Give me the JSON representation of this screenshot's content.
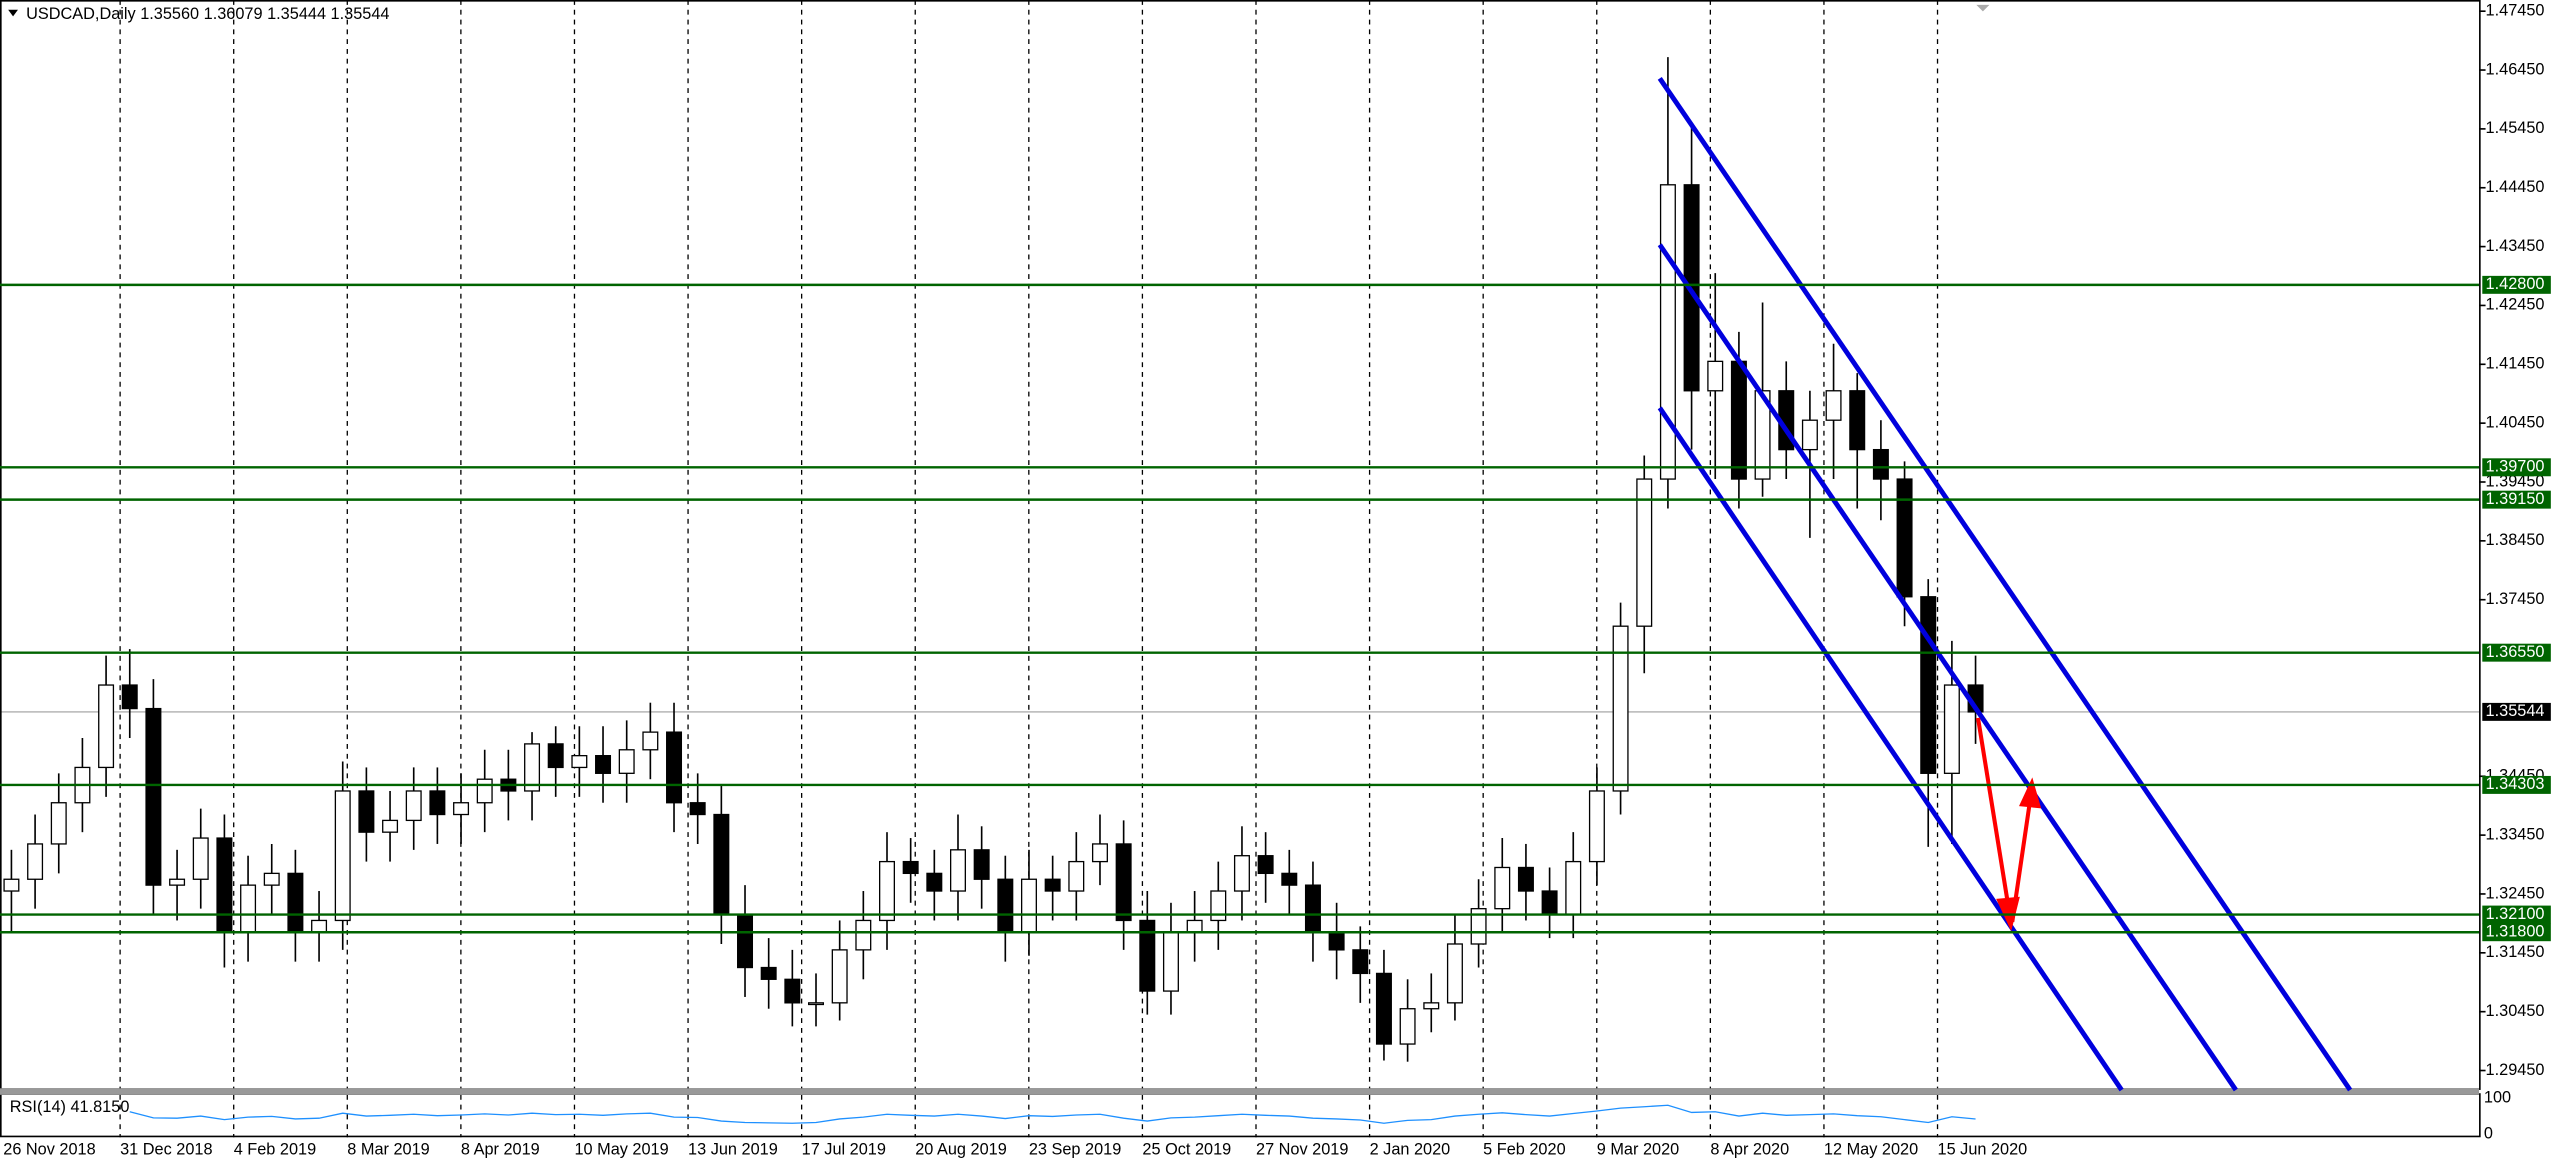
{
  "chart_data": {
    "type": "candlestick",
    "title": "USDCAD,Daily  1.35560 1.36079 1.35444 1.35544",
    "indicator_title": "RSI(14) 41.8150",
    "x_labels": [
      "26 Nov 2018",
      "31 Dec 2018",
      "4 Feb 2019",
      "8 Mar 2019",
      "8 Apr 2019",
      "10 May 2019",
      "13 Jun 2019",
      "17 Jul 2019",
      "20 Aug 2019",
      "23 Sep 2019",
      "25 Oct 2019",
      "27 Nov 2019",
      "2 Jan 2020",
      "5 Feb 2020",
      "9 Mar 2020",
      "8 Apr 2020",
      "12 May 2020",
      "15 Jun 2020"
    ],
    "candles": [
      [
        1.325,
        1.332,
        1.318,
        1.327
      ],
      [
        1.327,
        1.338,
        1.322,
        1.333
      ],
      [
        1.333,
        1.345,
        1.328,
        1.34
      ],
      [
        1.34,
        1.351,
        1.335,
        1.346
      ],
      [
        1.346,
        1.365,
        1.341,
        1.36
      ],
      [
        1.36,
        1.3661,
        1.351,
        1.356
      ],
      [
        1.356,
        1.361,
        1.321,
        1.326
      ],
      [
        1.326,
        1.332,
        1.32,
        1.327
      ],
      [
        1.327,
        1.339,
        1.322,
        1.334
      ],
      [
        1.334,
        1.338,
        1.312,
        1.318
      ],
      [
        1.318,
        1.331,
        1.313,
        1.326
      ],
      [
        1.326,
        1.333,
        1.321,
        1.328
      ],
      [
        1.328,
        1.332,
        1.313,
        1.318
      ],
      [
        1.318,
        1.325,
        1.313,
        1.32
      ],
      [
        1.32,
        1.347,
        1.315,
        1.342
      ],
      [
        1.342,
        1.346,
        1.33,
        1.335
      ],
      [
        1.335,
        1.342,
        1.33,
        1.337
      ],
      [
        1.337,
        1.346,
        1.332,
        1.342
      ],
      [
        1.342,
        1.346,
        1.333,
        1.338
      ],
      [
        1.338,
        1.345,
        1.333,
        1.34
      ],
      [
        1.34,
        1.349,
        1.335,
        1.344
      ],
      [
        1.344,
        1.349,
        1.337,
        1.342
      ],
      [
        1.342,
        1.352,
        1.337,
        1.35
      ],
      [
        1.35,
        1.353,
        1.341,
        1.346
      ],
      [
        1.346,
        1.353,
        1.341,
        1.348
      ],
      [
        1.348,
        1.353,
        1.34,
        1.345
      ],
      [
        1.345,
        1.354,
        1.34,
        1.349
      ],
      [
        1.349,
        1.357,
        1.344,
        1.352
      ],
      [
        1.352,
        1.357,
        1.335,
        1.34
      ],
      [
        1.34,
        1.345,
        1.333,
        1.338
      ],
      [
        1.338,
        1.343,
        1.316,
        1.321
      ],
      [
        1.321,
        1.326,
        1.307,
        1.312
      ],
      [
        1.312,
        1.317,
        1.305,
        1.31
      ],
      [
        1.31,
        1.315,
        1.302,
        1.306
      ],
      [
        1.306,
        1.311,
        1.302,
        1.306
      ],
      [
        1.306,
        1.32,
        1.303,
        1.315
      ],
      [
        1.315,
        1.325,
        1.31,
        1.32
      ],
      [
        1.32,
        1.335,
        1.315,
        1.33
      ],
      [
        1.33,
        1.334,
        1.323,
        1.328
      ],
      [
        1.328,
        1.332,
        1.32,
        1.325
      ],
      [
        1.325,
        1.338,
        1.32,
        1.332
      ],
      [
        1.332,
        1.336,
        1.322,
        1.327
      ],
      [
        1.327,
        1.331,
        1.313,
        1.318
      ],
      [
        1.318,
        1.332,
        1.314,
        1.327
      ],
      [
        1.327,
        1.331,
        1.32,
        1.325
      ],
      [
        1.325,
        1.335,
        1.32,
        1.33
      ],
      [
        1.33,
        1.338,
        1.326,
        1.333
      ],
      [
        1.333,
        1.337,
        1.315,
        1.32
      ],
      [
        1.32,
        1.325,
        1.304,
        1.308
      ],
      [
        1.308,
        1.323,
        1.304,
        1.318
      ],
      [
        1.318,
        1.325,
        1.313,
        1.32
      ],
      [
        1.32,
        1.33,
        1.315,
        1.325
      ],
      [
        1.325,
        1.336,
        1.32,
        1.331
      ],
      [
        1.331,
        1.335,
        1.323,
        1.328
      ],
      [
        1.328,
        1.332,
        1.321,
        1.326
      ],
      [
        1.326,
        1.33,
        1.313,
        1.318
      ],
      [
        1.318,
        1.323,
        1.31,
        1.315
      ],
      [
        1.315,
        1.319,
        1.306,
        1.311
      ],
      [
        1.311,
        1.315,
        1.2962,
        1.299
      ],
      [
        1.299,
        1.31,
        1.296,
        1.305
      ],
      [
        1.305,
        1.311,
        1.301,
        1.306
      ],
      [
        1.306,
        1.321,
        1.303,
        1.316
      ],
      [
        1.316,
        1.327,
        1.312,
        1.322
      ],
      [
        1.322,
        1.334,
        1.318,
        1.329
      ],
      [
        1.329,
        1.333,
        1.32,
        1.325
      ],
      [
        1.325,
        1.329,
        1.317,
        1.321
      ],
      [
        1.321,
        1.335,
        1.317,
        1.33
      ],
      [
        1.33,
        1.346,
        1.326,
        1.342
      ],
      [
        1.342,
        1.374,
        1.338,
        1.37
      ],
      [
        1.37,
        1.399,
        1.362,
        1.395
      ],
      [
        1.395,
        1.4667,
        1.39,
        1.445
      ],
      [
        1.445,
        1.455,
        1.4,
        1.41
      ],
      [
        1.41,
        1.43,
        1.395,
        1.415
      ],
      [
        1.415,
        1.42,
        1.39,
        1.395
      ],
      [
        1.395,
        1.425,
        1.392,
        1.41
      ],
      [
        1.41,
        1.415,
        1.395,
        1.4
      ],
      [
        1.4,
        1.41,
        1.385,
        1.405
      ],
      [
        1.405,
        1.418,
        1.395,
        1.41
      ],
      [
        1.41,
        1.413,
        1.39,
        1.4
      ],
      [
        1.4,
        1.405,
        1.388,
        1.395
      ],
      [
        1.395,
        1.398,
        1.37,
        1.375
      ],
      [
        1.375,
        1.378,
        1.3325,
        1.345
      ],
      [
        1.345,
        1.3675,
        1.333,
        1.36
      ],
      [
        1.36,
        1.365,
        1.35,
        1.35544
      ]
    ],
    "rsi": [
      null,
      null,
      null,
      null,
      null,
      62,
      45,
      44,
      50,
      40,
      47,
      49,
      42,
      44,
      58,
      50,
      52,
      55,
      51,
      53,
      56,
      53,
      58,
      54,
      55,
      52,
      56,
      58,
      47,
      46,
      36,
      32,
      31,
      30,
      32,
      42,
      47,
      55,
      52,
      50,
      55,
      50,
      43,
      51,
      49,
      53,
      55,
      44,
      36,
      45,
      47,
      51,
      55,
      52,
      50,
      44,
      42,
      39,
      30,
      38,
      40,
      50,
      55,
      59,
      54,
      50,
      57,
      64,
      72,
      76,
      80,
      60,
      62,
      50,
      58,
      52,
      54,
      56,
      51,
      48,
      40,
      32,
      48,
      41.815
    ],
    "rsi_color": "#1e90ff",
    "rsi_ylim": [
      0,
      100
    ],
    "rsi_yticks": [
      100,
      0
    ],
    "ylim": [
      1.2912,
      1.4764
    ],
    "yticks": [
      {
        "value": 1.4745,
        "label": "1.47450"
      },
      {
        "value": 1.4645,
        "label": "1.46450"
      },
      {
        "value": 1.4545,
        "label": "1.45450"
      },
      {
        "value": 1.4445,
        "label": "1.44450"
      },
      {
        "value": 1.4345,
        "label": "1.43450"
      },
      {
        "value": 1.4245,
        "label": "1.42450"
      },
      {
        "value": 1.4145,
        "label": "1.41450"
      },
      {
        "value": 1.4045,
        "label": "1.40450"
      },
      {
        "value": 1.3945,
        "label": "1.39450"
      },
      {
        "value": 1.3845,
        "label": "1.38450"
      },
      {
        "value": 1.3745,
        "label": "1.37450"
      },
      {
        "value": 1.3445,
        "label": "1.34450"
      },
      {
        "value": 1.3345,
        "label": "1.33450"
      },
      {
        "value": 1.3245,
        "label": "1.32450"
      },
      {
        "value": 1.3145,
        "label": "1.31450"
      },
      {
        "value": 1.3045,
        "label": "1.30450"
      },
      {
        "value": 1.2945,
        "label": "1.29450"
      }
    ],
    "levels": [
      {
        "value": 1.428,
        "label": "1.42800"
      },
      {
        "value": 1.397,
        "label": "1.39700"
      },
      {
        "value": 1.3915,
        "label": "1.39150"
      },
      {
        "value": 1.3655,
        "label": "1.36550"
      },
      {
        "value": 1.34303,
        "label": "1.34303"
      },
      {
        "value": 1.321,
        "label": "1.32100"
      },
      {
        "value": 1.318,
        "label": "1.31800"
      }
    ],
    "level_color": "#006400",
    "current_price": {
      "value": 1.35544,
      "label": "1.35544"
    },
    "grid": true
  }
}
